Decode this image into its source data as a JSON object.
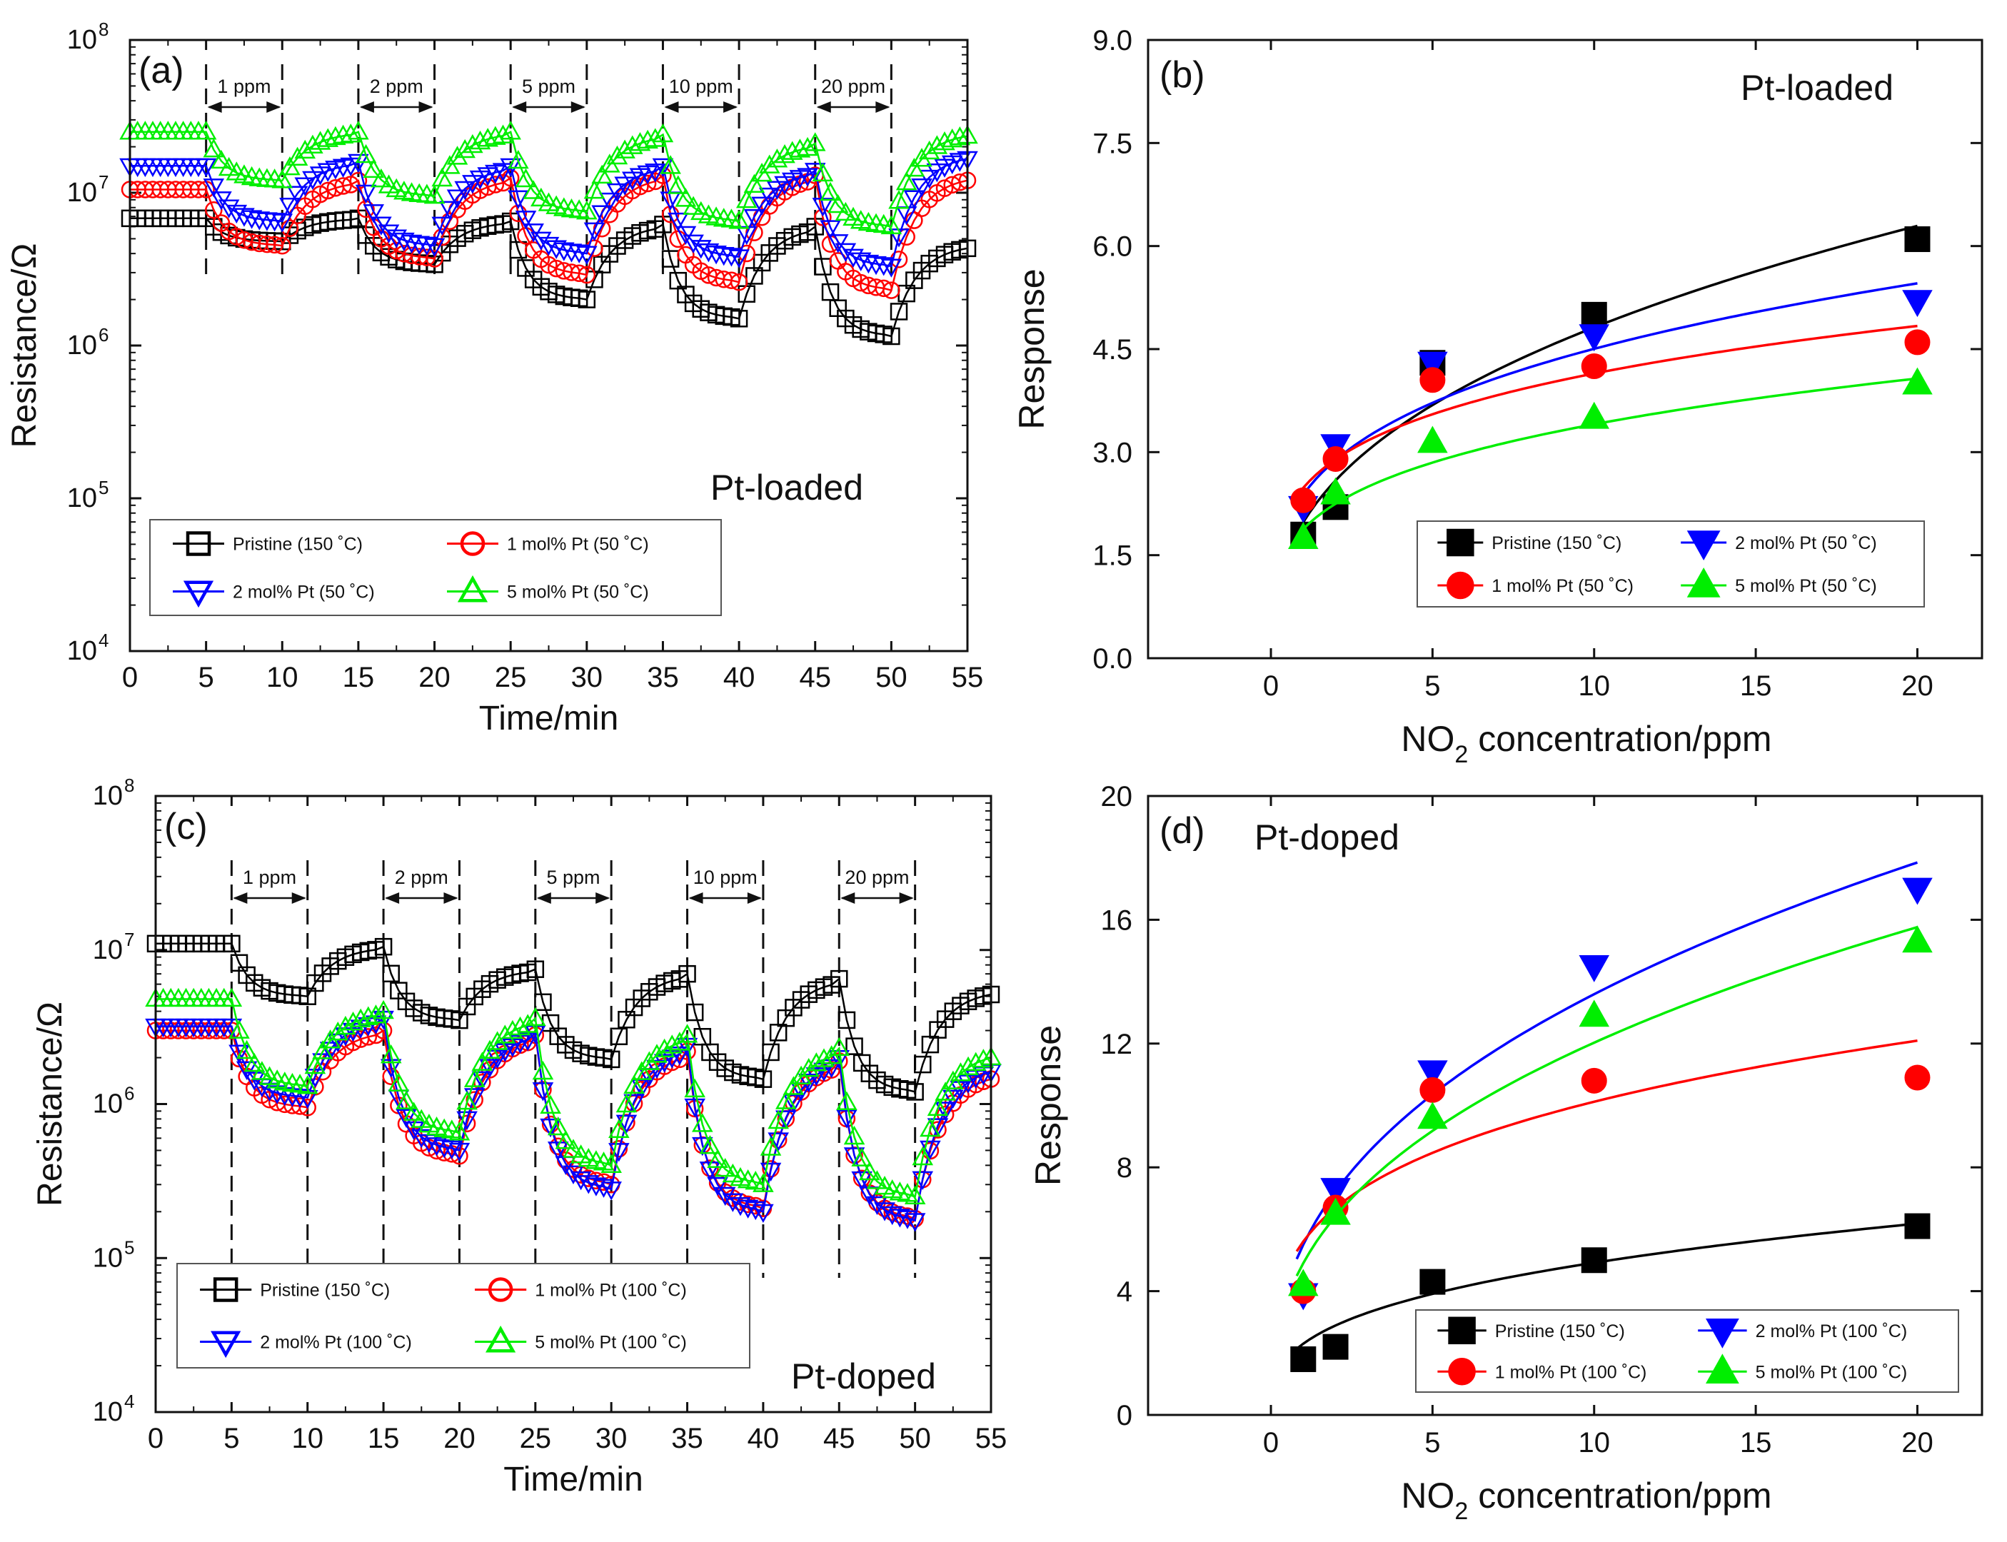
{
  "chart_data": [
    {
      "id": "a",
      "type": "line",
      "panel_label": "(a)",
      "annotation": "Pt-loaded",
      "xlabel": "Time/min",
      "ylabel": "Resistance/Ω",
      "xlim": [
        0,
        55
      ],
      "ylim_log10": [
        4,
        8
      ],
      "x_ticks": [
        "0",
        "5",
        "10",
        "15",
        "20",
        "25",
        "30",
        "35",
        "40",
        "45",
        "50",
        "55"
      ],
      "y_ticks": [
        {
          "base": "10",
          "exp": "4"
        },
        {
          "base": "10",
          "exp": "5"
        },
        {
          "base": "10",
          "exp": "6"
        },
        {
          "base": "10",
          "exp": "7"
        },
        {
          "base": "10",
          "exp": "8"
        }
      ],
      "exposures": [
        {
          "label": "1 ppm",
          "start": 5,
          "end": 10
        },
        {
          "label": "2 ppm",
          "start": 15,
          "end": 20
        },
        {
          "label": "5 ppm",
          "start": 25,
          "end": 30
        },
        {
          "label": "10 ppm",
          "start": 35,
          "end": 40
        },
        {
          "label": "20 ppm",
          "start": 45,
          "end": 50
        }
      ],
      "series": [
        {
          "name": "Pristine (150 ˚C)",
          "color": "#000000",
          "marker": "square-open",
          "baseline": [
            6800000.0,
            6800000.0,
            6500000.0,
            6200000.0,
            6000000.0,
            4600000.0
          ],
          "gas": [
            4800000.0,
            3400000.0,
            2000000.0,
            1500000.0,
            1150000.0
          ]
        },
        {
          "name": "1 mol% Pt (50 ˚C)",
          "color": "#ff0000",
          "marker": "circle-open",
          "baseline": [
            10500000.0,
            12000000.0,
            12500000.0,
            13000000.0,
            13000000.0,
            13000000.0
          ],
          "gas": [
            4500000.0,
            3700000.0,
            2900000.0,
            2600000.0,
            2300000.0
          ]
        },
        {
          "name": "2 mol% Pt (50 ˚C)",
          "color": "#0000ff",
          "marker": "triangle-down-open",
          "baseline": [
            15000000.0,
            16000000.0,
            15000000.0,
            15000000.0,
            14000000.0,
            18000000.0
          ],
          "gas": [
            6500000.0,
            4500000.0,
            4000000.0,
            3800000.0,
            3300000.0
          ]
        },
        {
          "name": "5 mol% Pt (50 ˚C)",
          "color": "#00ee00",
          "marker": "triangle-up-open",
          "baseline": [
            25000000.0,
            25000000.0,
            25000000.0,
            24000000.0,
            21000000.0,
            25000000.0
          ],
          "gas": [
            12000000.0,
            9500000.0,
            7500000.0,
            6500000.0,
            6000000.0
          ]
        }
      ]
    },
    {
      "id": "b",
      "type": "scatter",
      "panel_label": "(b)",
      "annotation": "Pt-loaded",
      "xlabel_main": "NO",
      "xlabel_sub": "2",
      "xlabel_rest": " concentration/ppm",
      "ylabel": "Response",
      "xlim": [
        -3.8,
        22
      ],
      "ylim": [
        0,
        9
      ],
      "x_ticks": [
        "0",
        "5",
        "10",
        "15",
        "20"
      ],
      "y_ticks": [
        "0.0",
        "1.5",
        "3.0",
        "4.5",
        "6.0",
        "7.5",
        "9.0"
      ],
      "x": [
        1,
        2,
        5,
        10,
        20
      ],
      "series": [
        {
          "name": "Pristine (150 ˚C)",
          "color": "#000000",
          "marker": "square",
          "values": [
            1.8,
            2.2,
            4.3,
            5.0,
            6.1
          ],
          "fit_a": 1.98,
          "fit_b": 0.386
        },
        {
          "name": "2 mol% Pt (50 ˚C)",
          "color": "#0000ff",
          "marker": "triangle-down",
          "values": [
            2.2,
            3.1,
            4.3,
            4.7,
            5.2
          ],
          "fit_a": 2.38,
          "fit_b": 0.277
        },
        {
          "name": "1 mol% Pt (50 ˚C)",
          "color": "#ff0000",
          "marker": "circle",
          "values": [
            2.3,
            2.9,
            4.05,
            4.25,
            4.6
          ],
          "fit_a": 2.48,
          "fit_b": 0.223
        },
        {
          "name": "5 mol% Pt (50 ˚C)",
          "color": "#00ee00",
          "marker": "triangle-up",
          "values": [
            1.75,
            2.4,
            3.15,
            3.5,
            4.0
          ],
          "fit_a": 1.88,
          "fit_b": 0.258
        }
      ]
    },
    {
      "id": "c",
      "type": "line",
      "panel_label": "(c)",
      "annotation": "Pt-doped",
      "xlabel": "Time/min",
      "ylabel": "Resistance/Ω",
      "xlim": [
        0,
        55
      ],
      "ylim_log10": [
        4,
        8
      ],
      "x_ticks": [
        "0",
        "5",
        "10",
        "15",
        "20",
        "25",
        "30",
        "35",
        "40",
        "45",
        "50",
        "55"
      ],
      "y_ticks": [
        {
          "base": "10",
          "exp": "4"
        },
        {
          "base": "10",
          "exp": "5"
        },
        {
          "base": "10",
          "exp": "6"
        },
        {
          "base": "10",
          "exp": "7"
        },
        {
          "base": "10",
          "exp": "8"
        }
      ],
      "exposures": [
        {
          "label": "1 ppm",
          "start": 5,
          "end": 10
        },
        {
          "label": "2 ppm",
          "start": 15,
          "end": 20
        },
        {
          "label": "5 ppm",
          "start": 25,
          "end": 30
        },
        {
          "label": "10 ppm",
          "start": 35,
          "end": 40
        },
        {
          "label": "20 ppm",
          "start": 45,
          "end": 50
        }
      ],
      "series": [
        {
          "name": "Pristine (150 ˚C)",
          "color": "#000000",
          "marker": "square-open",
          "baseline": [
            11000000.0,
            10500000.0,
            7500000.0,
            7000000.0,
            6500000.0,
            5500000.0
          ],
          "gas": [
            5000000.0,
            3500000.0,
            1950000.0,
            1450000.0,
            1200000.0
          ]
        },
        {
          "name": "1 mol% Pt (100 ˚C)",
          "color": "#ff0000",
          "marker": "circle-open",
          "baseline": [
            3000000.0,
            3000000.0,
            2800000.0,
            2200000.0,
            1900000.0,
            1600000.0
          ],
          "gas": [
            950000.0,
            460000.0,
            300000.0,
            210000.0,
            180000.0
          ]
        },
        {
          "name": "2 mol% Pt (100 ˚C)",
          "color": "#0000ff",
          "marker": "triangle-down-open",
          "baseline": [
            3200000.0,
            3600000.0,
            2900000.0,
            2400000.0,
            2000000.0,
            1800000.0
          ],
          "gas": [
            1100000.0,
            500000.0,
            280000.0,
            200000.0,
            175000.0
          ]
        },
        {
          "name": "5 mol% Pt (100 ˚C)",
          "color": "#00ee00",
          "marker": "triangle-up-open",
          "baseline": [
            4800000.0,
            4000000.0,
            3600000.0,
            2800000.0,
            2300000.0,
            2200000.0
          ],
          "gas": [
            1300000.0,
            650000.0,
            400000.0,
            300000.0,
            250000.0
          ]
        }
      ]
    },
    {
      "id": "d",
      "type": "scatter",
      "panel_label": "(d)",
      "annotation": "Pt-doped",
      "xlabel_main": "NO",
      "xlabel_sub": "2",
      "xlabel_rest": " concentration/ppm",
      "ylabel": "Response",
      "xlim": [
        -3.8,
        22
      ],
      "ylim": [
        0,
        20
      ],
      "x_ticks": [
        "0",
        "5",
        "10",
        "15",
        "20"
      ],
      "y_ticks": [
        "0",
        "4",
        "8",
        "12",
        "16",
        "20"
      ],
      "x": [
        1,
        2,
        5,
        10,
        20
      ],
      "series": [
        {
          "name": "Pristine (150 ˚C)",
          "color": "#000000",
          "marker": "square",
          "values": [
            1.8,
            2.2,
            4.3,
            5.0,
            6.1
          ],
          "fit_a": 2.3,
          "fit_b": 0.33
        },
        {
          "name": "2 mol% Pt (100 ˚C)",
          "color": "#0000ff",
          "marker": "triangle-down",
          "values": [
            3.9,
            7.3,
            11.1,
            14.5,
            17.0
          ],
          "fit_a": 5.5,
          "fit_b": 0.393
        },
        {
          "name": "1 mol% Pt (100 ˚C)",
          "color": "#ff0000",
          "marker": "circle",
          "values": [
            4.0,
            6.7,
            10.5,
            10.8,
            10.9
          ],
          "fit_a": 5.6,
          "fit_b": 0.257
        },
        {
          "name": "5 mol% Pt (100 ˚C)",
          "color": "#00ee00",
          "marker": "triangle-up",
          "values": [
            4.2,
            6.5,
            9.6,
            12.9,
            15.3
          ],
          "fit_a": 4.9,
          "fit_b": 0.39
        }
      ]
    }
  ]
}
